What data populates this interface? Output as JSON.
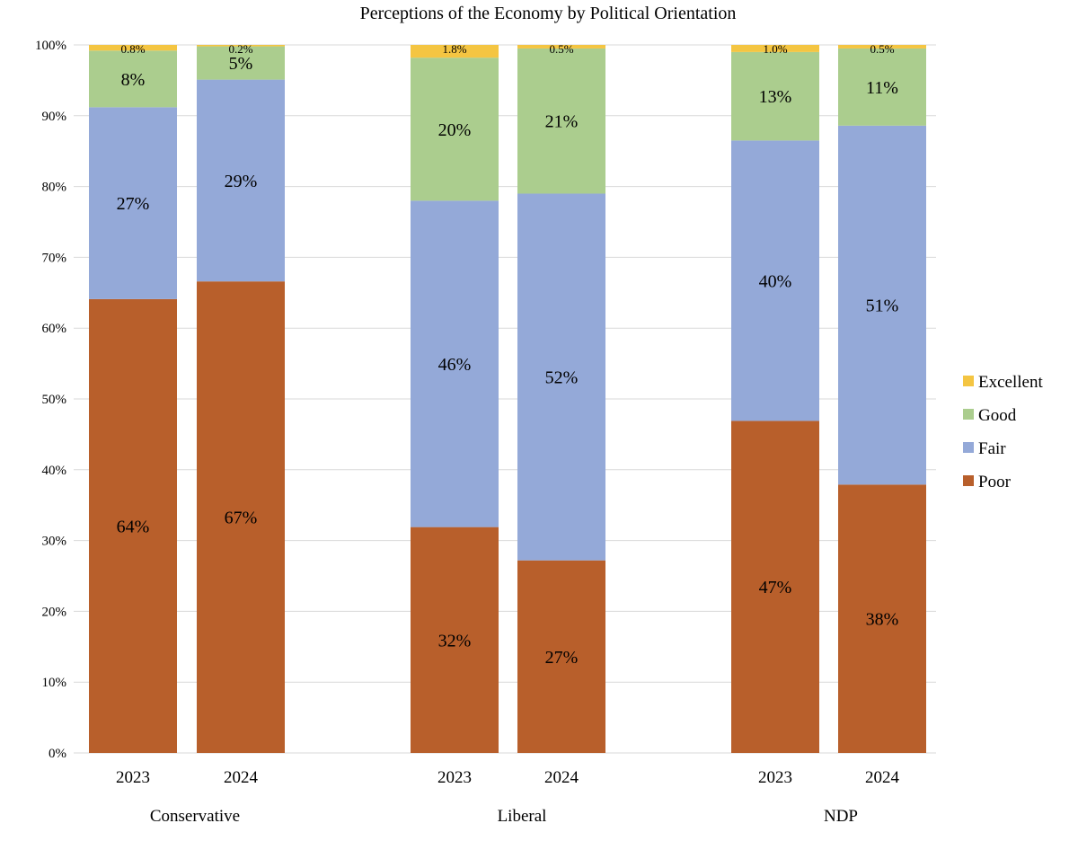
{
  "chart_data": {
    "type": "bar",
    "stacked": true,
    "title": "Perceptions of the Economy by Political Orientation",
    "xlabel": "",
    "ylabel": "",
    "ylim": [
      0,
      100
    ],
    "yticks": [
      "0%",
      "10%",
      "20%",
      "30%",
      "40%",
      "50%",
      "60%",
      "70%",
      "80%",
      "90%",
      "100%"
    ],
    "grid": true,
    "legend_position": "right",
    "groups": [
      {
        "name": "Conservative",
        "categories": [
          "2023",
          "2024"
        ]
      },
      {
        "name": "Liberal",
        "categories": [
          "2023",
          "2024"
        ]
      },
      {
        "name": "NDP",
        "categories": [
          "2023",
          "2024"
        ]
      }
    ],
    "categories": [
      "Conservative 2023",
      "Conservative 2024",
      "Liberal 2023",
      "Liberal 2024",
      "NDP 2023",
      "NDP 2024"
    ],
    "series": [
      {
        "name": "Poor",
        "color": "#b85f2b",
        "values": [
          64.1,
          66.6,
          31.9,
          27.2,
          46.9,
          37.9
        ],
        "labels": [
          "64%",
          "67%",
          "32%",
          "27%",
          "47%",
          "38%"
        ]
      },
      {
        "name": "Fair",
        "color": "#94a9d8",
        "values": [
          27.1,
          28.5,
          46.1,
          51.8,
          39.6,
          50.7
        ],
        "labels": [
          "27%",
          "29%",
          "46%",
          "52%",
          "40%",
          "51%"
        ]
      },
      {
        "name": "Good",
        "color": "#abcd8e",
        "values": [
          8.0,
          4.7,
          20.2,
          20.5,
          12.5,
          10.9
        ],
        "labels": [
          "8%",
          "5%",
          "20%",
          "21%",
          "13%",
          "11%"
        ]
      },
      {
        "name": "Excellent",
        "color": "#f4c542",
        "values": [
          0.8,
          0.2,
          1.8,
          0.5,
          1.0,
          0.5
        ],
        "labels": [
          "0.8%",
          "0.2%",
          "1.8%",
          "0.5%",
          "1.0%",
          "0.5%"
        ]
      }
    ],
    "legend_order": [
      "Excellent",
      "Good",
      "Fair",
      "Poor"
    ]
  }
}
